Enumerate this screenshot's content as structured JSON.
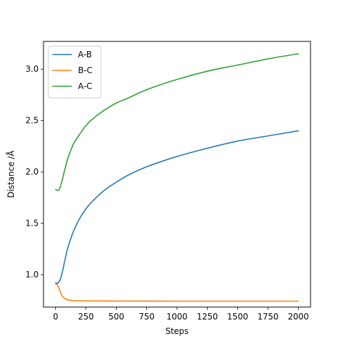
{
  "chart_data": {
    "type": "line",
    "title": "",
    "xlabel": "Steps",
    "ylabel": "Distance /Å",
    "xlim": [
      -100,
      2100
    ],
    "ylim": [
      0.685,
      3.27
    ],
    "xticks": [
      0,
      250,
      500,
      750,
      1000,
      1250,
      1500,
      1750,
      2000
    ],
    "yticks": [
      1.0,
      1.5,
      2.0,
      2.5,
      3.0
    ],
    "xtick_labels": [
      "0",
      "250",
      "500",
      "750",
      "1000",
      "1250",
      "1500",
      "1750",
      "2000"
    ],
    "ytick_labels": [
      "1.0",
      "1.5",
      "2.0",
      "2.5",
      "3.0"
    ],
    "grid": false,
    "legend_position": "top-left",
    "series": [
      {
        "name": "A-B",
        "color": "#1f77b4",
        "points": [
          [
            0,
            0.92
          ],
          [
            20,
            0.92
          ],
          [
            40,
            0.96
          ],
          [
            60,
            1.05
          ],
          [
            80,
            1.16
          ],
          [
            100,
            1.26
          ],
          [
            125,
            1.35
          ],
          [
            150,
            1.43
          ],
          [
            200,
            1.55
          ],
          [
            250,
            1.64
          ],
          [
            300,
            1.71
          ],
          [
            400,
            1.82
          ],
          [
            500,
            1.9
          ],
          [
            600,
            1.97
          ],
          [
            750,
            2.05
          ],
          [
            1000,
            2.15
          ],
          [
            1250,
            2.23
          ],
          [
            1500,
            2.3
          ],
          [
            1750,
            2.35
          ],
          [
            2000,
            2.4
          ]
        ]
      },
      {
        "name": "B-C",
        "color": "#ff7f0e",
        "points": [
          [
            0,
            0.91
          ],
          [
            15,
            0.9
          ],
          [
            30,
            0.86
          ],
          [
            50,
            0.8
          ],
          [
            75,
            0.77
          ],
          [
            100,
            0.755
          ],
          [
            150,
            0.748
          ],
          [
            250,
            0.745
          ],
          [
            500,
            0.743
          ],
          [
            1000,
            0.742
          ],
          [
            1500,
            0.742
          ],
          [
            2000,
            0.742
          ]
        ]
      },
      {
        "name": "A-C",
        "color": "#2ca02c",
        "points": [
          [
            0,
            1.83
          ],
          [
            15,
            1.82
          ],
          [
            30,
            1.83
          ],
          [
            50,
            1.9
          ],
          [
            75,
            2.02
          ],
          [
            100,
            2.13
          ],
          [
            125,
            2.21
          ],
          [
            150,
            2.28
          ],
          [
            200,
            2.37
          ],
          [
            250,
            2.45
          ],
          [
            300,
            2.51
          ],
          [
            400,
            2.6
          ],
          [
            500,
            2.67
          ],
          [
            600,
            2.72
          ],
          [
            750,
            2.8
          ],
          [
            1000,
            2.9
          ],
          [
            1250,
            2.98
          ],
          [
            1500,
            3.04
          ],
          [
            1750,
            3.1
          ],
          [
            2000,
            3.15
          ]
        ]
      }
    ]
  }
}
